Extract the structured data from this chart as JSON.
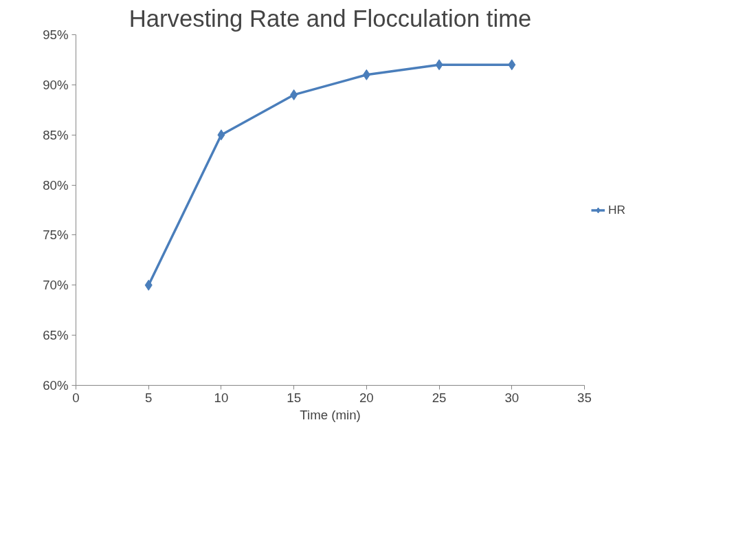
{
  "chart_data": {
    "type": "line",
    "title": "Harvesting Rate and Flocculation time",
    "xlabel": "Time (min)",
    "x": [
      5,
      10,
      15,
      20,
      25,
      30
    ],
    "series": [
      {
        "name": "HR",
        "color": "#4a7ebb",
        "values": [
          70,
          85,
          89,
          91,
          92,
          92
        ]
      }
    ],
    "xlim": [
      0,
      35
    ],
    "xticks": [
      0,
      5,
      10,
      15,
      20,
      25,
      30,
      35
    ],
    "ylim": [
      60,
      95
    ],
    "yticks": [
      {
        "value": 60,
        "label": "60%"
      },
      {
        "value": 65,
        "label": "65%"
      },
      {
        "value": 70,
        "label": "70%"
      },
      {
        "value": 75,
        "label": "75%"
      },
      {
        "value": 80,
        "label": "80%"
      },
      {
        "value": 85,
        "label": "85%"
      },
      {
        "value": 90,
        "label": "90%"
      },
      {
        "value": 95,
        "label": "95%"
      }
    ],
    "grid": false,
    "legend": "right",
    "marker": "diamond",
    "line_style": "solid"
  }
}
